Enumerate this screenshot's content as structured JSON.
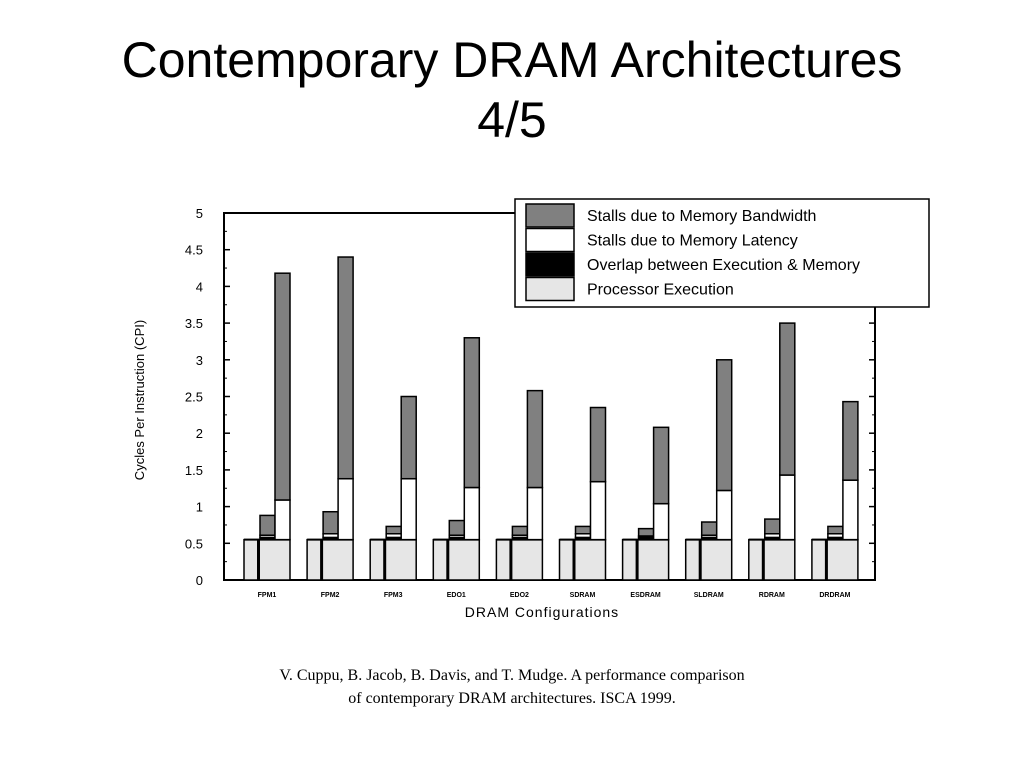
{
  "slide": {
    "title_line1": "Contemporary DRAM Architectures",
    "title_line2": "4/5"
  },
  "citation": {
    "line1": "V. Cuppu, B. Jacob, B. Davis, and T. Mudge. A performance comparison",
    "line2": "of contemporary DRAM architectures. ISCA 1999."
  },
  "colors": {
    "bandwidth": "#808080",
    "latency": "#ffffff",
    "overlap": "#000000",
    "processor": "#e6e6e6"
  },
  "chart_data": {
    "type": "bar",
    "stacked": true,
    "bars_per_group": 2,
    "categories": [
      "FPM1",
      "FPM2",
      "FPM3",
      "EDO1",
      "EDO2",
      "SDRAM",
      "ESDRAM",
      "SLDRAM",
      "RDRAM",
      "DRDRAM"
    ],
    "xlabel": "DRAM Configurations",
    "ylabel": "Cycles Per Instruction (CPI)",
    "ylim": [
      0,
      5
    ],
    "yticks": [
      "0",
      "0.5",
      "1",
      "1.5",
      "2",
      "2.5",
      "3",
      "3.5",
      "4",
      "4.5",
      "5"
    ],
    "legend_position": "top-right",
    "legend": [
      {
        "key": "bandwidth",
        "label": "Stalls due to Memory Bandwidth"
      },
      {
        "key": "latency",
        "label": "Stalls due to Memory Latency"
      },
      {
        "key": "overlap",
        "label": "Overlap between Execution & Memory"
      },
      {
        "key": "processor",
        "label": "Processor Execution"
      }
    ],
    "bar_a": {
      "processor": [
        0.55,
        0.55,
        0.55,
        0.55,
        0.55,
        0.55,
        0.55,
        0.55,
        0.55,
        0.55
      ],
      "overlap": [
        0.03,
        0.03,
        0.03,
        0.03,
        0.03,
        0.03,
        0.03,
        0.03,
        0.03,
        0.03
      ],
      "latency": [
        0.03,
        0.05,
        0.05,
        0.03,
        0.03,
        0.05,
        0.02,
        0.03,
        0.05,
        0.05
      ],
      "bandwidth": [
        0.27,
        0.3,
        0.1,
        0.2,
        0.12,
        0.1,
        0.1,
        0.18,
        0.2,
        0.1
      ]
    },
    "bar_b": {
      "processor": [
        0.55,
        0.55,
        0.55,
        0.55,
        0.55,
        0.55,
        0.55,
        0.55,
        0.55,
        0.55
      ],
      "overlap": [
        0.0,
        0.0,
        0.0,
        0.0,
        0.0,
        0.0,
        0.0,
        0.0,
        0.0,
        0.0
      ],
      "latency": [
        0.54,
        0.83,
        0.83,
        0.71,
        0.71,
        0.79,
        0.49,
        0.67,
        0.88,
        0.81
      ],
      "bandwidth": [
        3.09,
        3.02,
        1.12,
        2.04,
        1.32,
        1.01,
        1.04,
        1.78,
        2.07,
        1.07
      ]
    }
  }
}
